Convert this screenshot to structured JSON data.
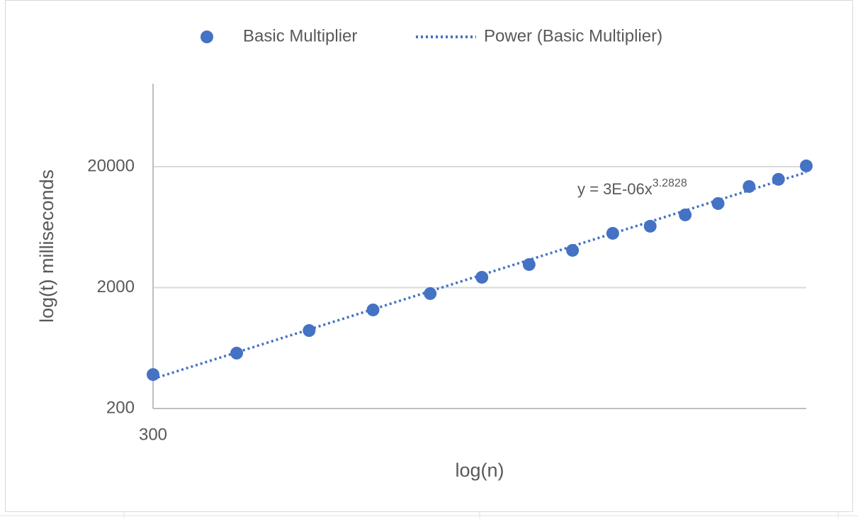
{
  "chart_data": {
    "type": "scatter",
    "x_label": "log(n)",
    "y_label": "log(t) milliseconds",
    "x": [
      300,
      350,
      400,
      450,
      500,
      550,
      600,
      650,
      700,
      750,
      800,
      850,
      900,
      950,
      1000
    ],
    "series": [
      {
        "name": "Basic Multiplier",
        "color": "#4472c4",
        "values": [
          382,
          574,
          883,
          1307,
          1784,
          2432,
          3102,
          4064,
          5620,
          6430,
          7980,
          9910,
          13700,
          15700,
          20280
        ]
      },
      {
        "name": "Power (Basic Multiplier)",
        "color": "#4472c4",
        "trendline": "power",
        "x": [
          300,
          1000
        ],
        "values": [
          352,
          17960
        ]
      }
    ],
    "equation": {
      "text": "y = 3E-06x",
      "superscript": "3.2828"
    },
    "x_log": true,
    "y_log": true,
    "xlim": [
      300,
      1000
    ],
    "xticks": [
      300
    ],
    "ylim": [
      200,
      97000
    ],
    "yticks": [
      200,
      2000,
      20000
    ],
    "grid": true,
    "legend": "top"
  }
}
